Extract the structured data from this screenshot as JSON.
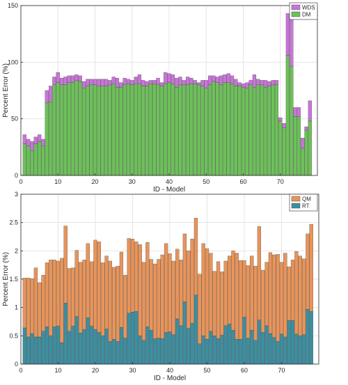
{
  "colors": {
    "wds": "#c875d8",
    "dm": "#6dc05a",
    "qm": "#e8945a",
    "rt": "#3d8ea0",
    "grid": "#e4e4e4",
    "axis": "#262626"
  },
  "chart_data": [
    {
      "type": "bar",
      "stacked": true,
      "xlabel": "ID - Model",
      "ylabel": "Percent Error (%)",
      "xlim": [
        0,
        80
      ],
      "ylim": [
        0,
        150
      ],
      "xticks": [
        "0",
        "10",
        "20",
        "30",
        "40",
        "50",
        "60",
        "70"
      ],
      "yticks": [
        "0",
        "50",
        "100",
        "150"
      ],
      "grid": true,
      "legend": "top-right",
      "x": [
        1,
        2,
        3,
        4,
        5,
        6,
        7,
        8,
        9,
        10,
        11,
        12,
        13,
        14,
        15,
        16,
        17,
        18,
        19,
        20,
        21,
        22,
        23,
        24,
        25,
        26,
        27,
        28,
        29,
        30,
        31,
        32,
        33,
        34,
        35,
        36,
        37,
        38,
        39,
        40,
        41,
        42,
        43,
        44,
        45,
        46,
        47,
        48,
        49,
        50,
        51,
        52,
        53,
        54,
        55,
        56,
        57,
        58,
        59,
        60,
        61,
        62,
        63,
        64,
        65,
        66,
        67,
        68,
        69,
        70,
        71,
        72,
        73,
        74,
        75,
        76,
        77,
        78
      ],
      "series": [
        {
          "name": "DM",
          "values": [
            28,
            26,
            22,
            28,
            30,
            26,
            64,
            65,
            80,
            82,
            80,
            80,
            82,
            82,
            84,
            83,
            77,
            79,
            80,
            80,
            79,
            79,
            79,
            80,
            81,
            78,
            78,
            80,
            81,
            80,
            81,
            81,
            79,
            79,
            81,
            81,
            80,
            79,
            81,
            82,
            81,
            78,
            80,
            80,
            80,
            81,
            81,
            80,
            79,
            77,
            80,
            83,
            82,
            80,
            82,
            82,
            81,
            79,
            79,
            78,
            77,
            80,
            78,
            80,
            80,
            78,
            79,
            80,
            80,
            48,
            42,
            106,
            96,
            52,
            52,
            24,
            40,
            48
          ]
        },
        {
          "name": "WDS",
          "values": [
            8,
            6,
            8,
            6,
            6,
            6,
            11,
            14,
            7,
            9,
            6,
            7,
            6,
            6,
            5,
            5,
            6,
            6,
            5,
            5,
            6,
            6,
            6,
            4,
            6,
            8,
            4,
            6,
            4,
            4,
            6,
            8,
            5,
            4,
            3,
            3,
            6,
            3,
            10,
            8,
            8,
            8,
            7,
            4,
            7,
            5,
            3,
            2,
            5,
            7,
            8,
            5,
            5,
            8,
            7,
            8,
            7,
            6,
            3,
            3,
            5,
            4,
            11,
            5,
            4,
            6,
            4,
            4,
            4,
            3,
            4,
            37,
            42,
            8,
            8,
            9,
            3,
            18
          ]
        }
      ]
    },
    {
      "type": "bar",
      "stacked": true,
      "xlabel": "ID - Model",
      "ylabel": "Percent Error (%)",
      "xlim": [
        0,
        80
      ],
      "ylim": [
        0,
        3
      ],
      "xticks": [
        "0",
        "10",
        "20",
        "30",
        "40",
        "50",
        "60",
        "70"
      ],
      "yticks": [
        "0",
        "0.5",
        "1",
        "1.5",
        "2",
        "2.5",
        "3"
      ],
      "grid": true,
      "legend": "top-right",
      "x": [
        1,
        2,
        3,
        4,
        5,
        6,
        7,
        8,
        9,
        10,
        11,
        12,
        13,
        14,
        15,
        16,
        17,
        18,
        19,
        20,
        21,
        22,
        23,
        24,
        25,
        26,
        27,
        28,
        29,
        30,
        31,
        32,
        33,
        34,
        35,
        36,
        37,
        38,
        39,
        40,
        41,
        42,
        43,
        44,
        45,
        46,
        47,
        48,
        49,
        50,
        51,
        52,
        53,
        54,
        55,
        56,
        57,
        58,
        59,
        60,
        61,
        62,
        63,
        64,
        65,
        66,
        67,
        68,
        69,
        70,
        71,
        72,
        73,
        74,
        75,
        76,
        77,
        78
      ],
      "series": [
        {
          "name": "RT",
          "values": [
            0.64,
            0.48,
            0.54,
            0.48,
            0.48,
            0.58,
            0.66,
            0.5,
            0.66,
            0.67,
            0.38,
            1.08,
            0.58,
            0.67,
            0.84,
            0.55,
            0.61,
            0.82,
            0.67,
            0.61,
            0.56,
            0.5,
            0.62,
            0.4,
            0.44,
            0.4,
            0.65,
            0.46,
            0.9,
            0.92,
            0.93,
            0.5,
            0.42,
            0.66,
            0.6,
            0.45,
            0.46,
            0.45,
            0.56,
            0.57,
            0.52,
            0.8,
            0.68,
            1.1,
            0.63,
            0.72,
            1.22,
            0.36,
            0.5,
            0.44,
            0.58,
            0.5,
            0.45,
            0.51,
            0.68,
            0.71,
            0.6,
            0.44,
            0.44,
            0.83,
            0.46,
            0.6,
            0.42,
            0.78,
            0.56,
            0.68,
            0.54,
            0.47,
            0.4,
            0.53,
            0.48,
            0.77,
            0.77,
            0.53,
            0.5,
            0.52,
            0.97,
            0.93
          ]
        },
        {
          "name": "QM",
          "values": [
            0.88,
            1.04,
            0.97,
            1.22,
            0.96,
            0.99,
            1.13,
            1.34,
            1.18,
            1.15,
            1.49,
            1.36,
            1.11,
            1.03,
            1.17,
            1.25,
            1.23,
            1.31,
            1.14,
            1.58,
            1.6,
            1.29,
            1.29,
            1.42,
            1.27,
            1.33,
            1.33,
            1.11,
            1.32,
            1.29,
            1.23,
            1.61,
            1.38,
            1.49,
            1.25,
            1.32,
            1.39,
            1.48,
            1.57,
            1.38,
            1.3,
            1.23,
            1.16,
            1.2,
            1.37,
            1.49,
            1.36,
            1.23,
            1.63,
            1.6,
            1.38,
            1.14,
            1.36,
            1.12,
            1.14,
            1.2,
            1.4,
            1.52,
            1.39,
            1.0,
            1.28,
            1.31,
            1.31,
            1.65,
            1.1,
            1.12,
            1.43,
            1.46,
            1.54,
            1.27,
            1.48,
            0.95,
            1.07,
            1.46,
            1.41,
            1.34,
            1.33,
            1.54
          ]
        }
      ]
    }
  ]
}
